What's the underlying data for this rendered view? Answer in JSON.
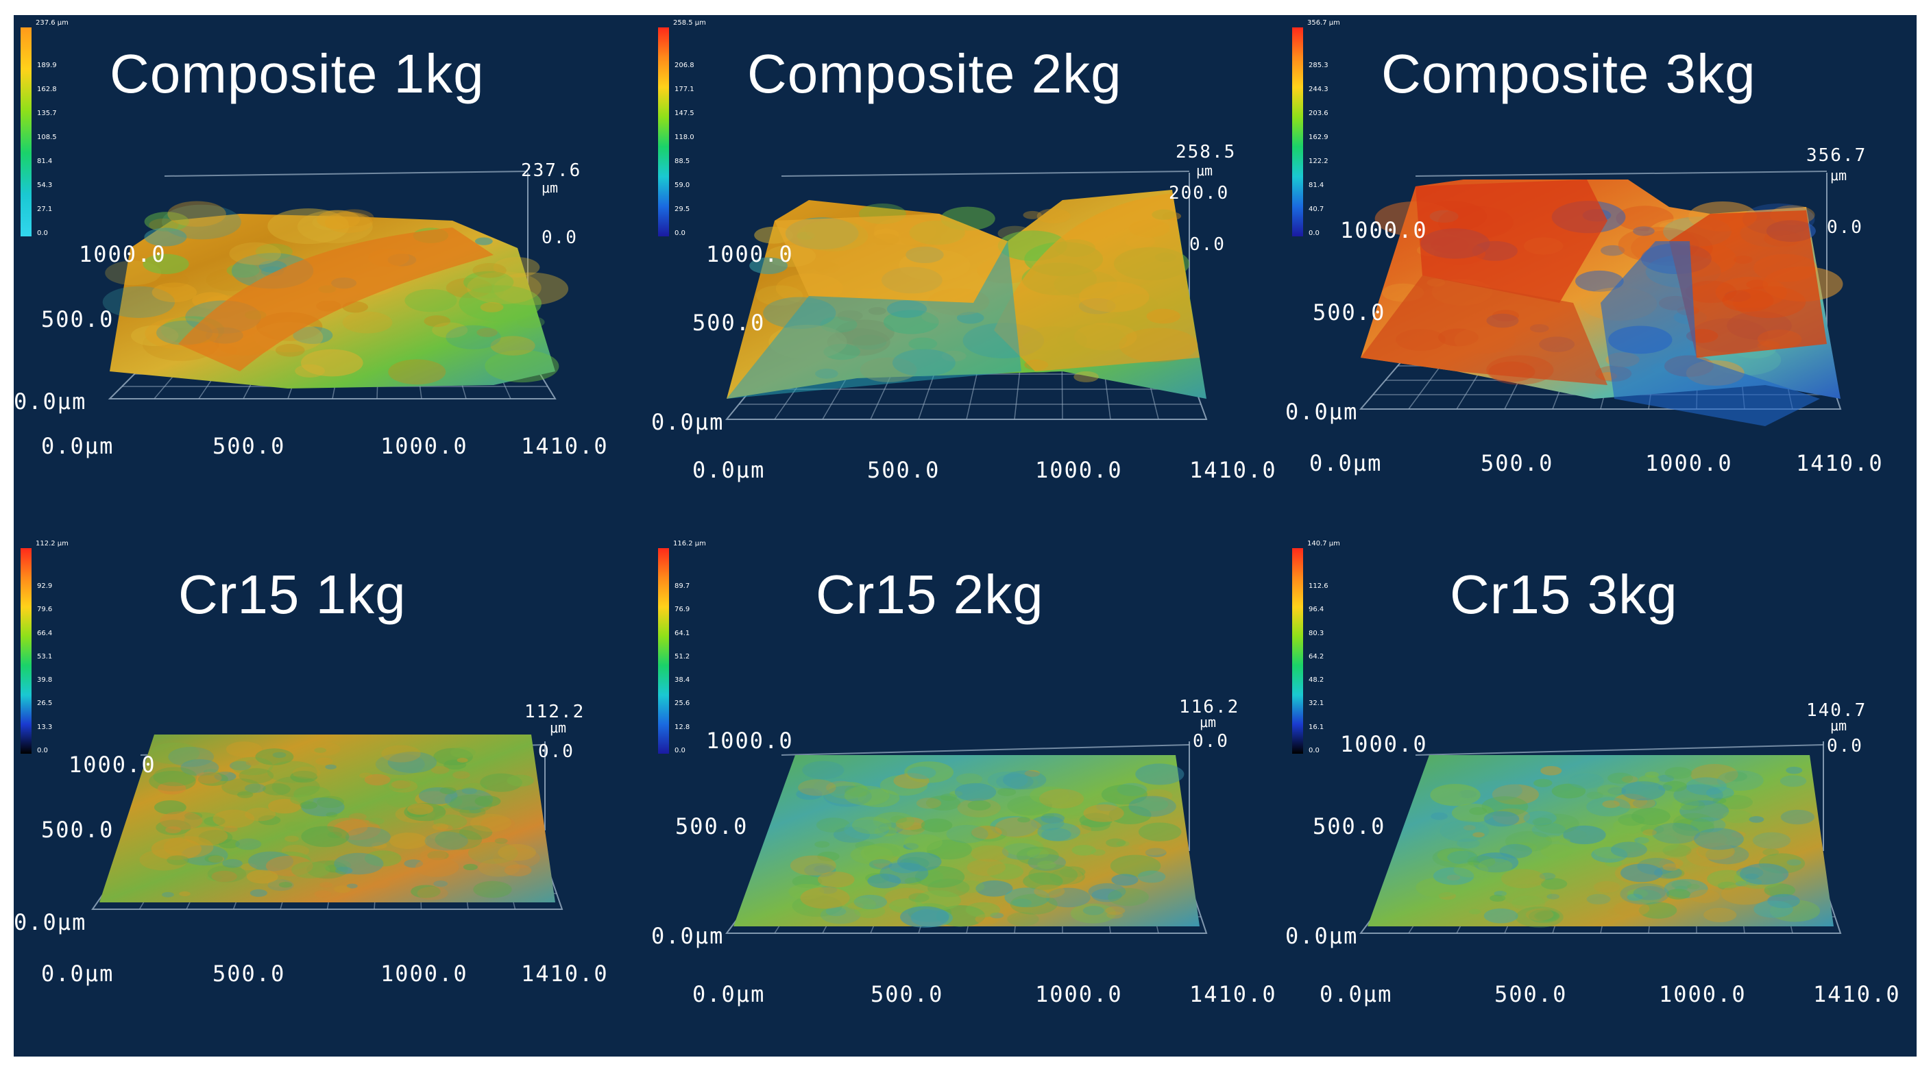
{
  "figure": {
    "background": "#0b2748",
    "panels": [
      {
        "id": "composite-1kg",
        "title": "Composite 1kg",
        "z_max": "237.6",
        "z_unit": "μm",
        "z_zero": "0.0",
        "y_labels": [
          "1000.0",
          "500.0",
          "0.0μm"
        ],
        "x_labels": [
          "0.0μm",
          "500.0",
          "1000.0",
          "1410.0"
        ],
        "colorbar_top": "237.6 μm",
        "colorbar_ticks": [
          "189.9",
          "162.8",
          "135.7",
          "108.5",
          "81.4",
          "54.3",
          "27.1",
          "0.0"
        ],
        "dominant_color": "orange"
      },
      {
        "id": "composite-2kg",
        "title": "Composite 2kg",
        "z_max": "258.5",
        "z_unit": "μm",
        "z_mid": "200.0",
        "z_zero": "0.0",
        "y_labels": [
          "1000.0",
          "500.0",
          "0.0μm"
        ],
        "x_labels": [
          "0.0μm",
          "500.0",
          "1000.0",
          "1410.0"
        ],
        "colorbar_top": "258.5 μm",
        "colorbar_ticks": [
          "206.8",
          "177.1",
          "147.5",
          "118.0",
          "88.5",
          "59.0",
          "29.5",
          "0.0"
        ],
        "dominant_color": "orange"
      },
      {
        "id": "composite-3kg",
        "title": "Composite 3kg",
        "z_max": "356.7",
        "z_unit": "μm",
        "z_zero": "0.0",
        "y_labels": [
          "1000.0",
          "500.0",
          "0.0μm"
        ],
        "x_labels": [
          "0.0μm",
          "500.0",
          "1000.0",
          "1410.0"
        ],
        "colorbar_top": "356.7 μm",
        "colorbar_ticks": [
          "285.3",
          "244.3",
          "203.6",
          "162.9",
          "122.2",
          "81.4",
          "40.7",
          "0.0"
        ],
        "dominant_color": "red"
      },
      {
        "id": "cr15-1kg",
        "title": "Cr15 1kg",
        "z_max": "112.2",
        "z_unit": "μm",
        "z_zero": "0.0",
        "y_labels": [
          "1000.0",
          "500.0",
          "0.0μm"
        ],
        "x_labels": [
          "0.0μm",
          "500.0",
          "1000.0",
          "1410.0"
        ],
        "colorbar_top": "112.2 μm",
        "colorbar_ticks": [
          "92.9",
          "79.6",
          "66.4",
          "53.1",
          "39.8",
          "26.5",
          "13.3",
          "0.0"
        ],
        "dominant_color": "green-orange"
      },
      {
        "id": "cr15-2kg",
        "title": "Cr15 2kg",
        "z_max": "116.2",
        "z_unit": "μm",
        "z_zero": "0.0",
        "y_labels": [
          "1000.0",
          "500.0",
          "0.0μm"
        ],
        "x_labels": [
          "0.0μm",
          "500.0",
          "1000.0",
          "1410.0"
        ],
        "colorbar_top": "116.2 μm",
        "colorbar_ticks": [
          "89.7",
          "76.9",
          "64.1",
          "51.2",
          "38.4",
          "25.6",
          "12.8",
          "0.0"
        ],
        "dominant_color": "green"
      },
      {
        "id": "cr15-3kg",
        "title": "Cr15 3kg",
        "z_max": "140.7",
        "z_unit": "μm",
        "z_zero": "0.0",
        "y_labels": [
          "1000.0",
          "500.0",
          "0.0μm"
        ],
        "x_labels": [
          "0.0μm",
          "500.0",
          "1000.0",
          "1410.0"
        ],
        "colorbar_top": "140.7 μm",
        "colorbar_ticks": [
          "112.6",
          "96.4",
          "80.3",
          "64.2",
          "48.2",
          "32.1",
          "16.1",
          "0.0"
        ],
        "dominant_color": "green"
      }
    ]
  }
}
